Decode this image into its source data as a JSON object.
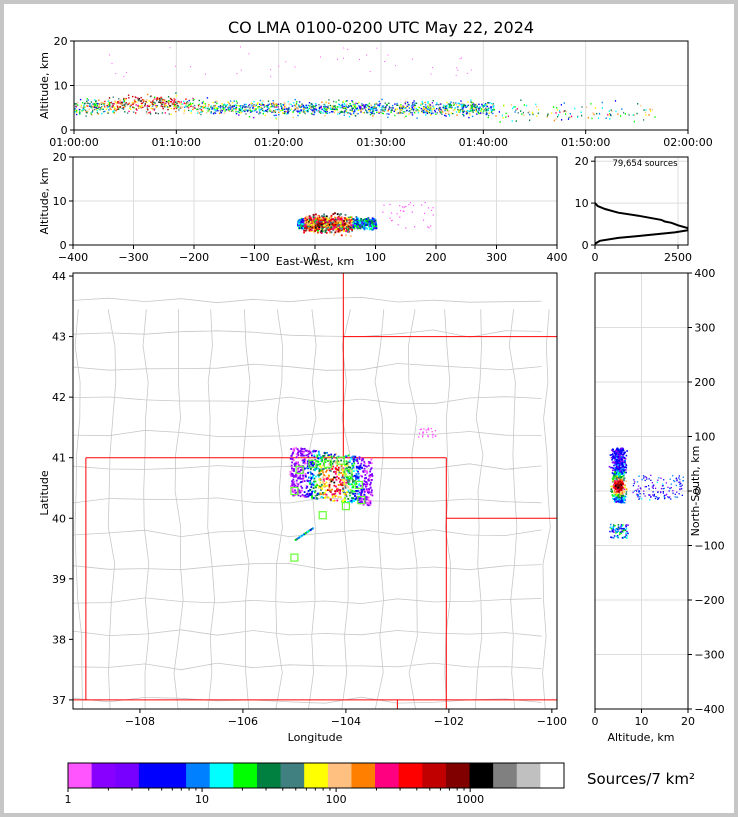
{
  "chart_data": [
    {
      "type": "scatter",
      "name": "altitude-time",
      "title": "CO LMA 0100-0200 UTC May 22, 2024",
      "ylabel": "Altitude, km",
      "xlim": [
        "01:00:00",
        "02:00:00"
      ],
      "ylim": [
        0,
        20
      ],
      "xticks": [
        "01:00:00",
        "01:10:00",
        "01:20:00",
        "01:30:00",
        "01:40:00",
        "01:50:00",
        "02:00:00"
      ],
      "yticks": [
        "0",
        "10",
        "20"
      ],
      "grid": true,
      "activity_minutes": [
        0,
        41
      ],
      "sparse_minutes": [
        41,
        57
      ],
      "typical_altitude_km": [
        1,
        11
      ]
    },
    {
      "type": "scatter",
      "name": "east-west-altitude",
      "xlabel": "East-West, km",
      "ylabel": "Altitude, km",
      "xlim": [
        -400,
        400
      ],
      "ylim": [
        0,
        20
      ],
      "xticks": [
        "−400",
        "−300",
        "−200",
        "−100",
        "0",
        "100",
        "200",
        "300",
        "400"
      ],
      "yticks": [
        "0",
        "10",
        "20"
      ],
      "grid": true,
      "main_x_range_km": [
        -30,
        100
      ],
      "core_x_range_km": [
        -20,
        60
      ]
    },
    {
      "type": "line",
      "name": "altitude-histogram",
      "annotation": "79,654 sources",
      "xlim": [
        0,
        2800
      ],
      "ylim": [
        0,
        21
      ],
      "xticks": [
        "0",
        "2500"
      ],
      "yticks": [
        "0",
        "10",
        "20"
      ],
      "profile": [
        {
          "x": 0,
          "y": 0.3
        },
        {
          "x": 150,
          "y": 1.0
        },
        {
          "x": 700,
          "y": 1.7
        },
        {
          "x": 1500,
          "y": 2.3
        },
        {
          "x": 2400,
          "y": 3.0
        },
        {
          "x": 2800,
          "y": 3.5
        },
        {
          "x": 2800,
          "y": 4.0
        },
        {
          "x": 2500,
          "y": 4.7
        },
        {
          "x": 2300,
          "y": 5.3
        },
        {
          "x": 2100,
          "y": 5.6
        },
        {
          "x": 2000,
          "y": 6.0
        },
        {
          "x": 1300,
          "y": 7.0
        },
        {
          "x": 700,
          "y": 7.7
        },
        {
          "x": 300,
          "y": 8.6
        },
        {
          "x": 80,
          "y": 9.3
        },
        {
          "x": 0,
          "y": 10.0
        }
      ]
    },
    {
      "type": "scatter",
      "name": "plan-view",
      "xlabel": "Longitude",
      "ylabel": "Latitude",
      "xlim": [
        -109.3,
        -99.9
      ],
      "ylim": [
        36.85,
        44.05
      ],
      "xticks": [
        "−108",
        "−106",
        "−104",
        "−102",
        "−100"
      ],
      "yticks": [
        "37",
        "38",
        "39",
        "40",
        "41",
        "42",
        "43",
        "44"
      ],
      "main_cluster_lon": [
        -105.1,
        -103.5
      ],
      "main_cluster_lat": [
        40.3,
        41.1
      ],
      "station_markers": [
        {
          "lon": -104.9,
          "lat": 40.8
        },
        {
          "lon": -104.65,
          "lat": 40.9
        },
        {
          "lon": -104.35,
          "lat": 40.9
        },
        {
          "lon": -104.1,
          "lat": 40.95
        },
        {
          "lon": -103.95,
          "lat": 40.75
        },
        {
          "lon": -103.75,
          "lat": 40.55
        },
        {
          "lon": -103.7,
          "lat": 40.3
        },
        {
          "lon": -104.0,
          "lat": 40.2
        },
        {
          "lon": -104.45,
          "lat": 40.05
        },
        {
          "lon": -105.0,
          "lat": 40.45
        },
        {
          "lon": -105.0,
          "lat": 39.35
        }
      ]
    },
    {
      "type": "scatter",
      "name": "altitude-north-south",
      "xlabel": "Altitude, km",
      "ylabel": "North-South, km",
      "xlim": [
        0,
        20
      ],
      "ylim": [
        -400,
        400
      ],
      "xticks": [
        "0",
        "10",
        "20"
      ],
      "yticks": [
        "−400",
        "−300",
        "−200",
        "−100",
        "0",
        "100",
        "200",
        "300",
        "400"
      ],
      "grid": true,
      "main_y_range_km": [
        -20,
        80
      ],
      "lower_cluster_y_km": [
        -85,
        -60
      ]
    },
    {
      "type": "heatmap",
      "name": "colorbar",
      "label": "Sources/7 km²",
      "scale": "log",
      "tick_labels": [
        "1",
        "10",
        "100",
        "1000"
      ],
      "colors": [
        "#ff55ff",
        "#8800ff",
        "#7700ff",
        "#0000ff",
        "#0000ff",
        "#0080ff",
        "#00ffff",
        "#00ff00",
        "#008040",
        "#408080",
        "#ffff00",
        "#ffc080",
        "#ff8000",
        "#ff0080",
        "#ff0000",
        "#c00000",
        "#800000",
        "#000000",
        "#808080",
        "#c0c0c0",
        "#ffffff"
      ]
    }
  ]
}
